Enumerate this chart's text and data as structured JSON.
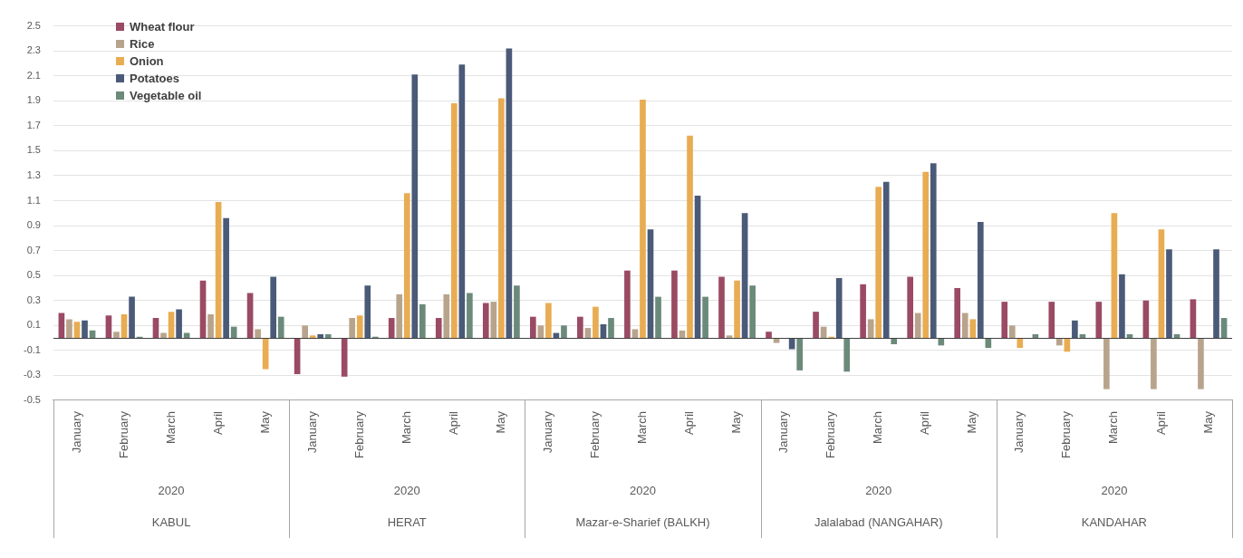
{
  "chart_data": {
    "type": "bar",
    "categories": [
      "January",
      "February",
      "March",
      "April",
      "May",
      "January",
      "February",
      "March",
      "April",
      "May",
      "January",
      "February",
      "March",
      "April",
      "May",
      "January",
      "February",
      "March",
      "April",
      "May",
      "January",
      "February",
      "March",
      "April",
      "May"
    ],
    "series": [
      {
        "name": "Wheat flour",
        "color": "#9b4a64",
        "values": [
          0.2,
          0.18,
          0.16,
          0.46,
          0.36,
          -0.29,
          -0.31,
          0.16,
          0.16,
          0.28,
          0.17,
          0.17,
          0.54,
          0.54,
          0.49,
          0.05,
          0.21,
          0.43,
          0.49,
          0.4,
          0.29,
          0.29,
          0.29,
          0.3,
          0.31
        ]
      },
      {
        "name": "Rice",
        "color": "#b8a48c",
        "values": [
          0.15,
          0.05,
          0.04,
          0.19,
          0.07,
          0.1,
          0.16,
          0.35,
          0.35,
          0.29,
          0.1,
          0.08,
          0.07,
          0.06,
          0.02,
          -0.04,
          0.09,
          0.15,
          0.2,
          0.2,
          0.1,
          -0.06,
          -0.41,
          -0.41,
          -0.41
        ]
      },
      {
        "name": "Onion",
        "color": "#e8ac52",
        "values": [
          0.13,
          0.19,
          0.21,
          1.09,
          -0.25,
          0.02,
          0.18,
          1.16,
          1.88,
          1.92,
          0.28,
          0.25,
          1.91,
          1.62,
          0.46,
          null,
          0.01,
          1.21,
          1.33,
          0.15,
          -0.08,
          -0.11,
          1.0,
          0.87,
          null
        ]
      },
      {
        "name": "Potatoes",
        "color": "#4a5a78",
        "values": [
          0.14,
          0.33,
          0.23,
          0.96,
          0.49,
          0.03,
          0.42,
          2.11,
          2.19,
          2.32,
          0.04,
          0.11,
          0.87,
          1.14,
          1.0,
          -0.09,
          0.48,
          1.25,
          1.4,
          0.93,
          null,
          0.14,
          0.51,
          0.71,
          0.71
        ]
      },
      {
        "name": "Vegetable oil",
        "color": "#6b8a7a",
        "values": [
          0.06,
          0.01,
          0.04,
          0.09,
          0.17,
          0.03,
          0.01,
          0.27,
          0.36,
          0.42,
          0.1,
          0.16,
          0.33,
          0.33,
          0.42,
          -0.26,
          -0.27,
          -0.05,
          -0.06,
          -0.08,
          0.03,
          0.03,
          0.03,
          0.03,
          0.16
        ]
      }
    ],
    "ylim": [
      -0.5,
      2.5
    ],
    "yticks": [
      -0.5,
      -0.3,
      -0.1,
      0.1,
      0.3,
      0.5,
      0.7,
      0.9,
      1.1,
      1.3,
      1.5,
      1.7,
      1.9,
      2.1,
      2.3,
      2.5
    ],
    "grid": "y",
    "legend": "top left",
    "annotations": [
      "2020",
      "KABUL",
      "2020",
      "HERAT",
      "2020",
      "Mazar-e-Sharief (BALKH)",
      "2020",
      "Jalalabad (NANGAHAR)",
      "2020",
      "KANDAHAR"
    ]
  }
}
